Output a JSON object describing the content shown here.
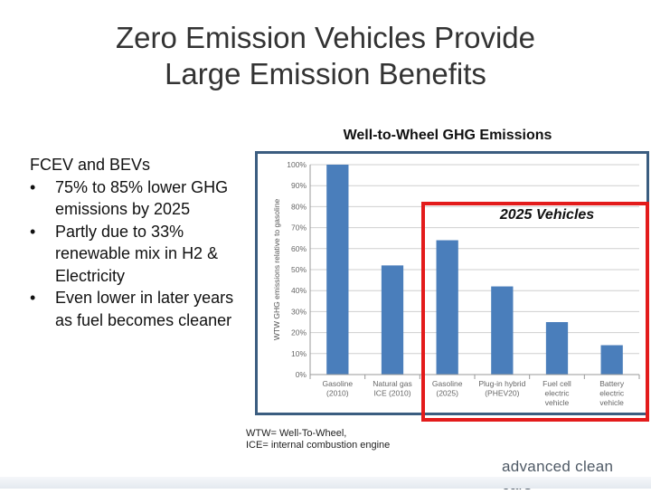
{
  "slide": {
    "title_line1": "Zero Emission Vehicles Provide",
    "title_line2": "Large Emission Benefits",
    "left_heading": "FCEV and BEVs",
    "bullets": [
      "75% to 85% lower GHG emissions by 2025",
      "Partly due to 33% renewable mix in H2 & Electricity",
      "Even lower in later years as fuel becomes cleaner"
    ],
    "highlight_label": "2025 Vehicles",
    "footnote_line1": "WTW= Well-To-Wheel,",
    "footnote_line2": "ICE= internal combustion engine",
    "logo_text": "advanced clean cars",
    "colors": {
      "bar": "#4a7ebb",
      "frame": "#3b5d80",
      "highlight": "#e31b1b",
      "grid": "#cfcfcf"
    }
  },
  "chart_data": {
    "type": "bar",
    "title": "Well-to-Wheel GHG Emissions",
    "ylabel": "WTW GHG emissions relative to gasoline",
    "xlabel": "",
    "ylim": [
      0,
      100
    ],
    "yticks": [
      "0%",
      "10%",
      "20%",
      "30%",
      "40%",
      "50%",
      "60%",
      "70%",
      "80%",
      "90%",
      "100%"
    ],
    "categories": [
      [
        "Gasoline",
        "(2010)"
      ],
      [
        "Natural gas",
        "ICE (2010)"
      ],
      [
        "Gasoline",
        "(2025)"
      ],
      [
        "Plug-in hybrid",
        "(PHEV20)"
      ],
      [
        "Fuel cell",
        "electric",
        "vehicle"
      ],
      [
        "Battery",
        "electric",
        "vehicle"
      ]
    ],
    "values": [
      100,
      52,
      64,
      42,
      25,
      14
    ]
  }
}
